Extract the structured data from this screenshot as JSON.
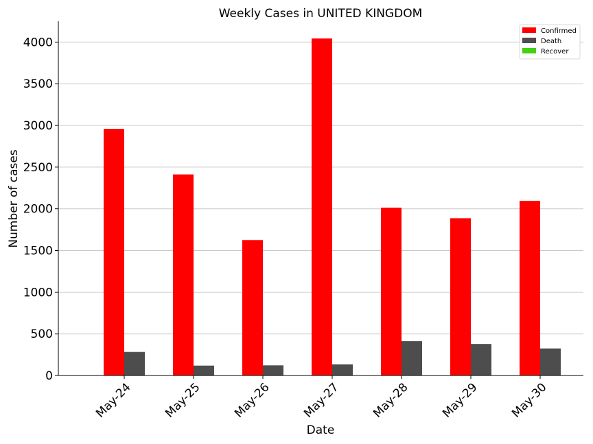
{
  "chart_data": {
    "type": "bar",
    "title": "Weekly Cases in UNITED KINGDOM",
    "xlabel": "Date",
    "ylabel": "Number of cases",
    "categories": [
      "May-24",
      "May-25",
      "May-26",
      "May-27",
      "May-28",
      "May-29",
      "May-30"
    ],
    "ylim": [
      0,
      4250
    ],
    "yticks": [
      0,
      500,
      1000,
      1500,
      2000,
      2500,
      3000,
      3500,
      4000
    ],
    "grid": "horizontal",
    "legend_position": "top-right",
    "series": [
      {
        "name": "Confirmed",
        "color": "#ff0000",
        "values": [
          2959,
          2412,
          1625,
          4043,
          2013,
          1887,
          2095
        ]
      },
      {
        "name": "Death",
        "color": "#4d4d4d",
        "values": [
          282,
          118,
          121,
          134,
          412,
          377,
          324
        ]
      },
      {
        "name": "Recover",
        "color": "#44d013",
        "values": [
          0,
          0,
          0,
          0,
          0,
          0,
          0
        ]
      }
    ]
  }
}
